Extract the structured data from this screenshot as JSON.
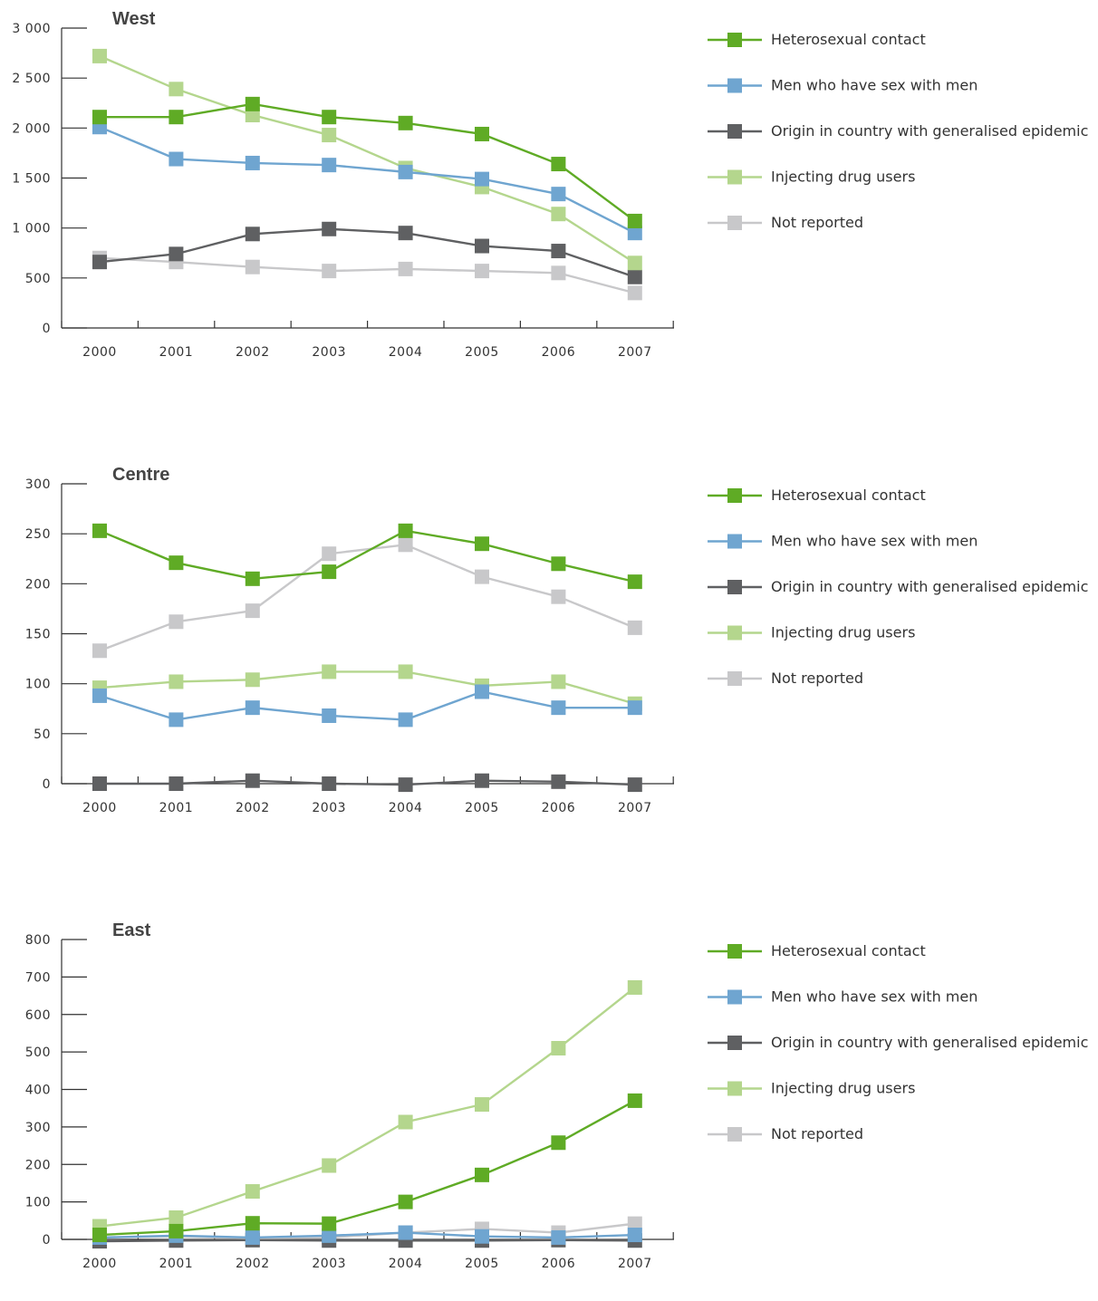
{
  "chart_data": [
    {
      "type": "line",
      "title": "West",
      "x": [
        "2000",
        "2001",
        "2002",
        "2003",
        "2004",
        "2005",
        "2006",
        "2007"
      ],
      "ylim": [
        0,
        3000
      ],
      "yticks": [
        0,
        500,
        1000,
        1500,
        2000,
        2500,
        3000
      ],
      "ytick_labels": [
        "0",
        "500",
        "1 000",
        "1 500",
        "2 000",
        "2 500",
        "3 000"
      ],
      "series": [
        {
          "name": "Not reported",
          "color": "#c8c8ca",
          "values": [
            700,
            660,
            610,
            570,
            590,
            570,
            550,
            350
          ]
        },
        {
          "name": "Origin in country with generalised epidemic",
          "color": "#5f6062",
          "values": [
            660,
            740,
            940,
            990,
            950,
            820,
            770,
            510
          ]
        },
        {
          "name": "Injecting drug users",
          "color": "#b4d68d",
          "values": [
            2720,
            2390,
            2130,
            1930,
            1600,
            1410,
            1140,
            650
          ]
        },
        {
          "name": "Men who have sex with men",
          "color": "#6fa5d0",
          "values": [
            2010,
            1690,
            1650,
            1630,
            1560,
            1490,
            1340,
            950
          ]
        },
        {
          "name": "Heterosexual contact",
          "color": "#5fab25",
          "values": [
            2110,
            2110,
            2240,
            2110,
            2050,
            1940,
            1640,
            1070
          ]
        }
      ],
      "legend": "right"
    },
    {
      "type": "line",
      "title": "Centre",
      "x": [
        "2000",
        "2001",
        "2002",
        "2003",
        "2004",
        "2005",
        "2006",
        "2007"
      ],
      "ylim": [
        0,
        300
      ],
      "yticks": [
        0,
        50,
        100,
        150,
        200,
        250,
        300
      ],
      "ytick_labels": [
        "0",
        "50",
        "100",
        "150",
        "200",
        "250",
        "300"
      ],
      "series": [
        {
          "name": "Not reported",
          "color": "#c8c8ca",
          "values": [
            133,
            162,
            173,
            230,
            239,
            207,
            187,
            156
          ]
        },
        {
          "name": "Origin in country with generalised epidemic",
          "color": "#5f6062",
          "values": [
            0,
            0,
            3,
            0,
            -1,
            3,
            2,
            -1
          ]
        },
        {
          "name": "Injecting drug users",
          "color": "#b4d68d",
          "values": [
            96,
            102,
            104,
            112,
            112,
            98,
            102,
            80
          ]
        },
        {
          "name": "Men who have sex with men",
          "color": "#6fa5d0",
          "values": [
            88,
            64,
            76,
            68,
            64,
            92,
            76,
            76
          ]
        },
        {
          "name": "Heterosexual contact",
          "color": "#5fab25",
          "values": [
            253,
            221,
            205,
            212,
            253,
            240,
            220,
            202
          ]
        }
      ],
      "legend": "right"
    },
    {
      "type": "line",
      "title": "East",
      "x": [
        "2000",
        "2001",
        "2002",
        "2003",
        "2004",
        "2005",
        "2006",
        "2007"
      ],
      "ylim": [
        0,
        800
      ],
      "yticks": [
        0,
        100,
        200,
        300,
        400,
        500,
        600,
        700,
        800
      ],
      "ytick_labels": [
        "0",
        "100",
        "200",
        "300",
        "400",
        "500",
        "600",
        "700",
        "800"
      ],
      "series": [
        {
          "name": "Not reported",
          "color": "#c8c8ca",
          "values": [
            5,
            8,
            3,
            5,
            18,
            28,
            18,
            42
          ]
        },
        {
          "name": "Origin in country with generalised epidemic",
          "color": "#5f6062",
          "values": [
            -5,
            -3,
            -2,
            -3,
            -3,
            -3,
            -2,
            -3
          ]
        },
        {
          "name": "Injecting drug users",
          "color": "#b4d68d",
          "values": [
            35,
            58,
            128,
            197,
            313,
            360,
            510,
            672
          ]
        },
        {
          "name": "Men who have sex with men",
          "color": "#6fa5d0",
          "values": [
            5,
            10,
            5,
            10,
            18,
            8,
            5,
            12
          ]
        },
        {
          "name": "Heterosexual contact",
          "color": "#5fab25",
          "values": [
            12,
            22,
            43,
            42,
            100,
            172,
            258,
            370
          ]
        }
      ],
      "legend": "right"
    }
  ],
  "legend_order": [
    {
      "name": "Heterosexual contact",
      "color": "#5fab25"
    },
    {
      "name": "Men who have sex with men",
      "color": "#6fa5d0"
    },
    {
      "name": "Origin in country with generalised epidemic",
      "color": "#5f6062"
    },
    {
      "name": "Injecting drug users",
      "color": "#b4d68d"
    },
    {
      "name": "Not reported",
      "color": "#c8c8ca"
    }
  ]
}
